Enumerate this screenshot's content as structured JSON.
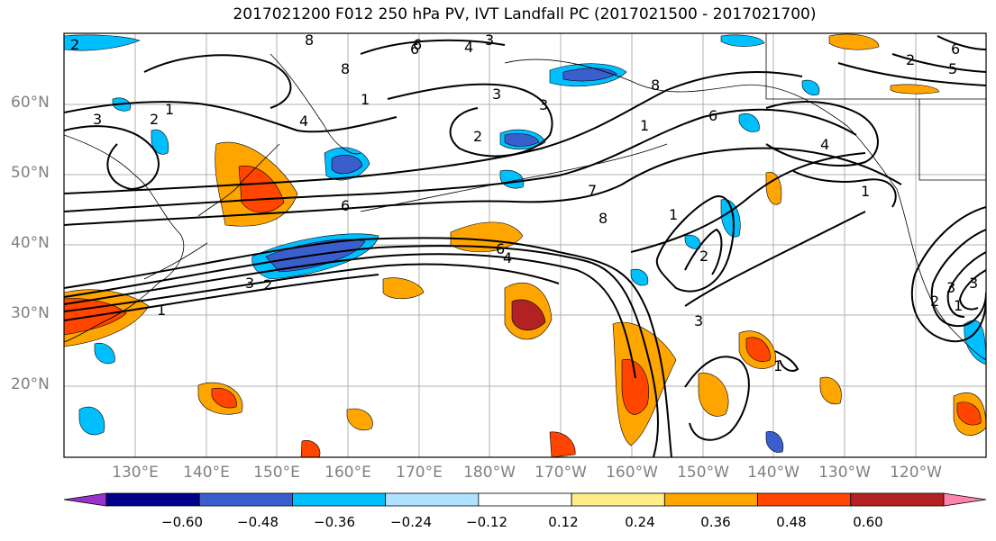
{
  "title": "2017021200 F012 250 hPa PV, IVT Landfall PC (2017021500 - 2017021700)",
  "lat_labels": [
    "60°N",
    "50°N",
    "40°N",
    "30°N",
    "20°N"
  ],
  "lon_labels": [
    "130°E",
    "140°E",
    "150°E",
    "160°E",
    "170°E",
    "180°W",
    "170°W",
    "160°W",
    "150°W",
    "140°W",
    "130°W",
    "120°W"
  ],
  "colorbar": {
    "ticks": [
      "−0.60",
      "−0.48",
      "−0.36",
      "−0.24",
      "−0.12",
      "0.12",
      "0.24",
      "0.36",
      "0.48",
      "0.60"
    ],
    "colors": [
      "#9932cc",
      "#00008b",
      "#3a5fcd",
      "#00bfff",
      "#b0e2ff",
      "#ffffff",
      "#ffec8b",
      "#ffa500",
      "#ff4500",
      "#b22222",
      "#ff82ab"
    ]
  },
  "contour_labels": [
    "2",
    "8",
    "6",
    "4",
    "3",
    "3",
    "2",
    "1",
    "3",
    "2",
    "4",
    "8",
    "6",
    "7",
    "8",
    "6",
    "6",
    "4",
    "1",
    "2",
    "3",
    "1",
    "2",
    "3",
    "6",
    "1",
    "1",
    "3",
    "5",
    "6",
    "8",
    "3",
    "2",
    "4",
    "1",
    "2",
    "1",
    "1",
    "3"
  ]
}
